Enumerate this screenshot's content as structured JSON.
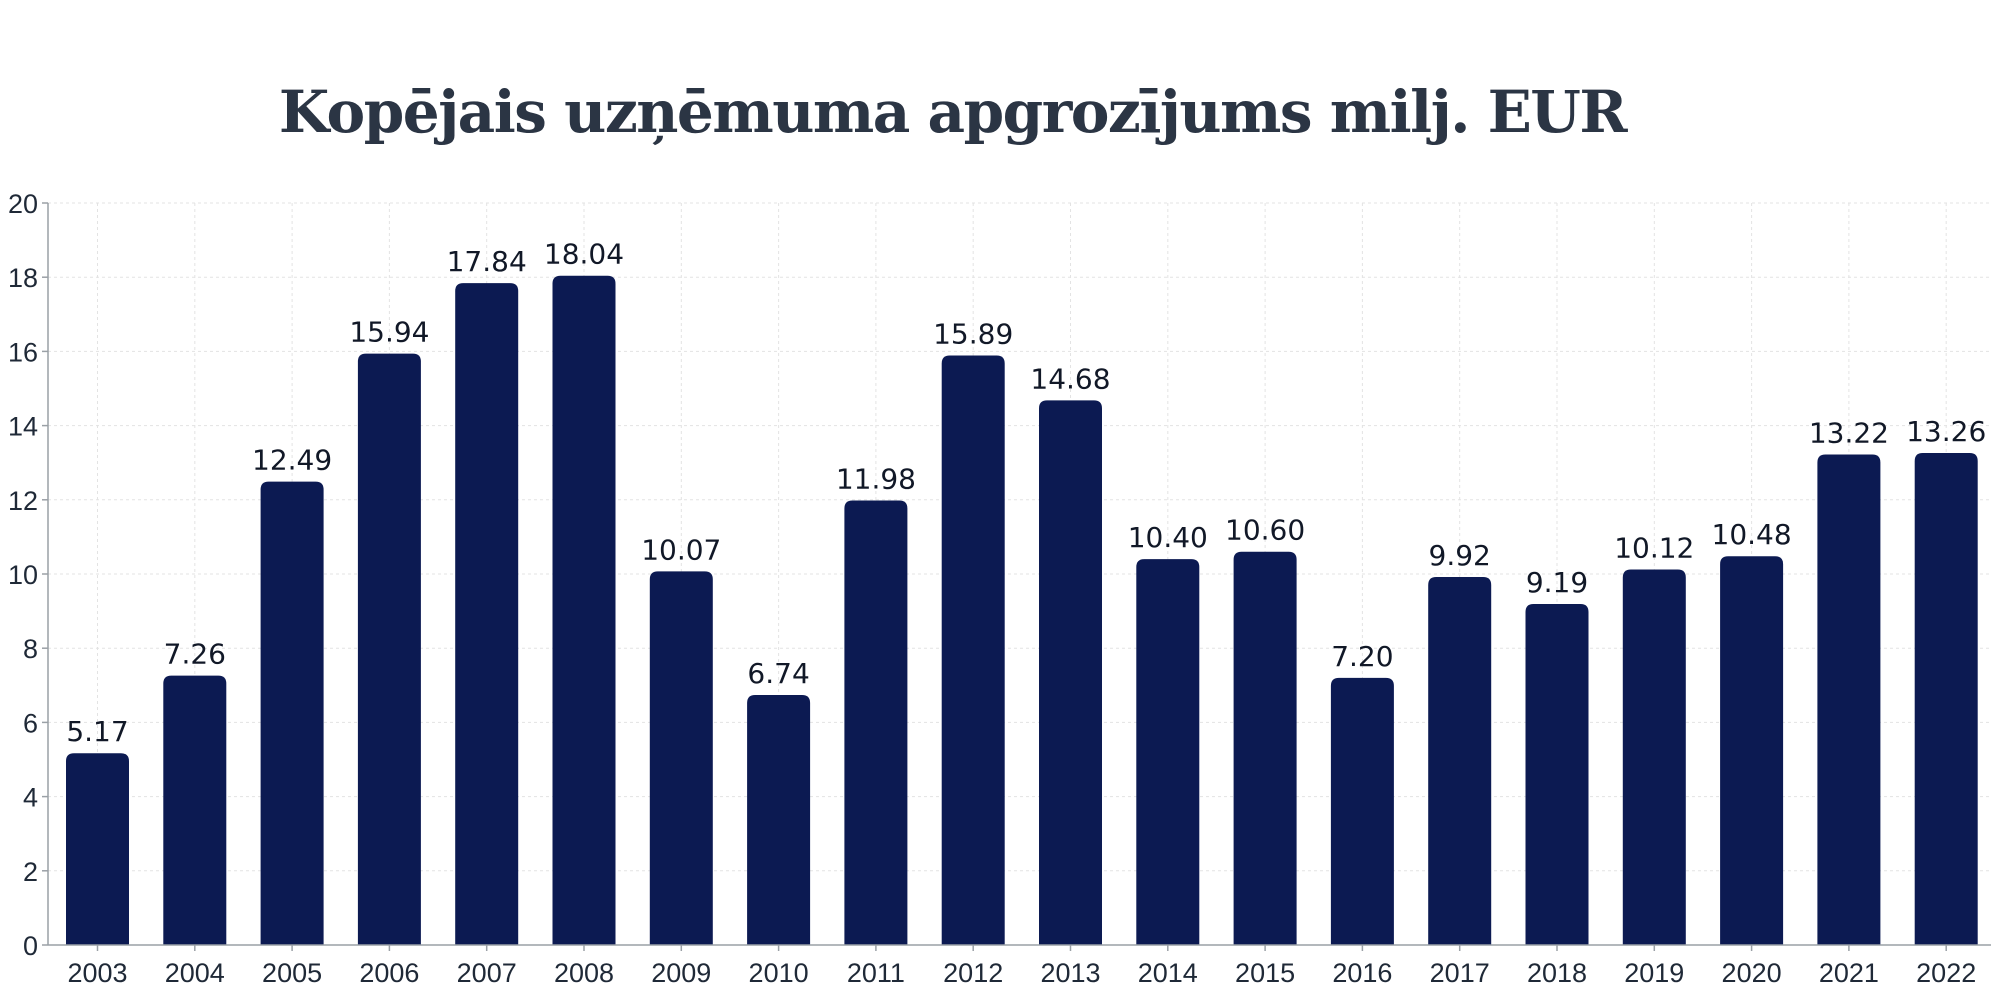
{
  "chart_data": {
    "type": "bar",
    "title": "Kopējais uzņēmuma apgrozījums milj. EUR",
    "xlabel": "",
    "ylabel": "",
    "categories": [
      "2003",
      "2004",
      "2005",
      "2006",
      "2007",
      "2008",
      "2009",
      "2010",
      "2011",
      "2012",
      "2013",
      "2014",
      "2015",
      "2016",
      "2017",
      "2018",
      "2019",
      "2020",
      "2021",
      "2022"
    ],
    "values": [
      5.17,
      7.26,
      12.49,
      15.94,
      17.84,
      18.04,
      10.07,
      6.74,
      11.98,
      15.89,
      14.68,
      10.4,
      10.6,
      7.2,
      9.92,
      9.19,
      10.12,
      10.48,
      13.22,
      13.26
    ],
    "value_labels": [
      "5.17",
      "7.26",
      "12.49",
      "15.94",
      "17.84",
      "18.04",
      "10.07",
      "6.74",
      "11.98",
      "15.89",
      "14.68",
      "10.40",
      "10.60",
      "7.20",
      "9.92",
      "9.19",
      "10.12",
      "10.48",
      "13.22",
      "13.26"
    ],
    "ylim": [
      0,
      20
    ],
    "yticks": [
      0,
      2,
      4,
      6,
      8,
      10,
      12,
      14,
      16,
      18,
      20
    ],
    "grid": true,
    "legend": "none",
    "colors": {
      "bar": "#0c1a52",
      "grid": "#e3e3e3",
      "axis": "#9aa0a6",
      "title": "#2b3544"
    }
  }
}
